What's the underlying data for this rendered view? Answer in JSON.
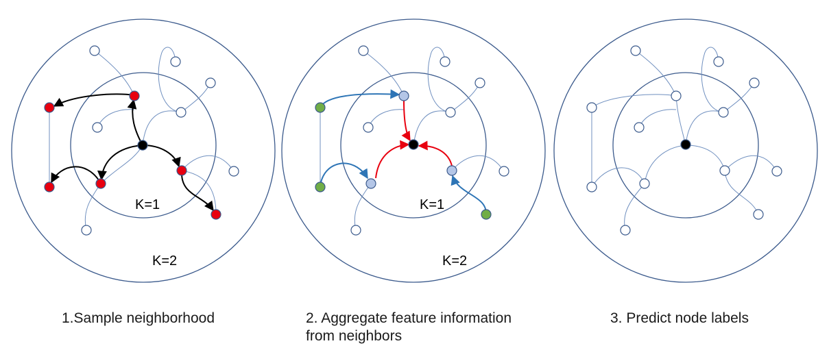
{
  "panels": [
    {
      "k1_label": "K=1",
      "k2_label": "K=2",
      "caption": [
        "1.Sample neighborhood"
      ]
    },
    {
      "k1_label": "K=1",
      "k2_label": "K=2",
      "caption": [
        "2. Aggregate feature information",
        "from neighbors"
      ]
    },
    {
      "caption": [
        "3. Predict node labels"
      ]
    }
  ],
  "colors": {
    "circle": "#3b5a8c",
    "edge": "#6f8fbf",
    "center_node": "#000000",
    "sampled_node": "#e8000f",
    "sample_arrow": "#000000",
    "neighbor_node": "#b4c6e7",
    "outer_node": "#70ad47",
    "aggregate_arrow_inner": "#e8000f",
    "aggregate_arrow_outer": "#2e75b6",
    "empty_node_fill": "#ffffff"
  }
}
